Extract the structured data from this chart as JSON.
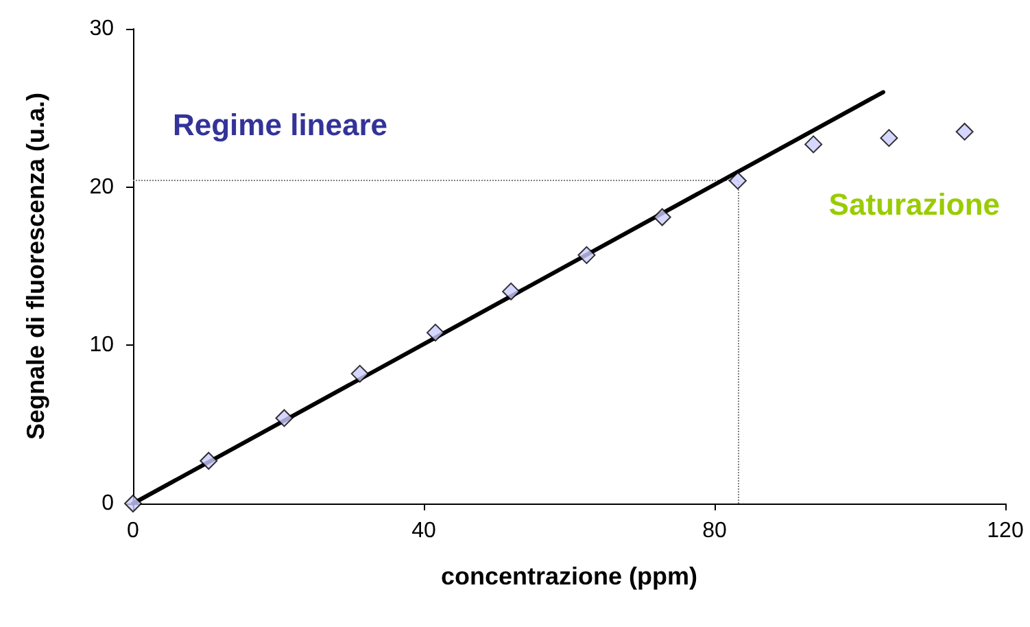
{
  "chart_data": {
    "type": "scatter",
    "xlabel": "concentrazione (ppm)",
    "ylabel": "Segnale di fluorescenza (u.a.)",
    "x": [
      0,
      10.4,
      20.8,
      31.2,
      41.6,
      52,
      62.4,
      72.8,
      83.2,
      93.6,
      104,
      114.4
    ],
    "series": [
      {
        "color": "#ccccff",
        "values": [
          0,
          2.7,
          5.4,
          8.2,
          10.8,
          13.4,
          15.7,
          18.1,
          20.4,
          22.7,
          23.1,
          23.5
        ]
      },
      {
        "type": "line",
        "color": "#000000",
        "x": [
          0,
          103.2
        ],
        "values": [
          0,
          26
        ],
        "marker": "none"
      }
    ],
    "xlim": [
      0,
      120
    ],
    "xticks": [
      0,
      40,
      80,
      120
    ],
    "ylim": [
      0,
      30
    ],
    "yticks": [
      0,
      10,
      20,
      30
    ],
    "grid": false,
    "marker": "diamond",
    "ref_lines": [
      {
        "axis": "y",
        "value": 20.4,
        "color": "#808080",
        "line_style": "dotted"
      },
      {
        "axis": "x",
        "value": 83.2,
        "color": "#808080",
        "line_style": "dotted"
      }
    ],
    "annotations": [
      "Regime lineare",
      "Saturazione"
    ]
  }
}
